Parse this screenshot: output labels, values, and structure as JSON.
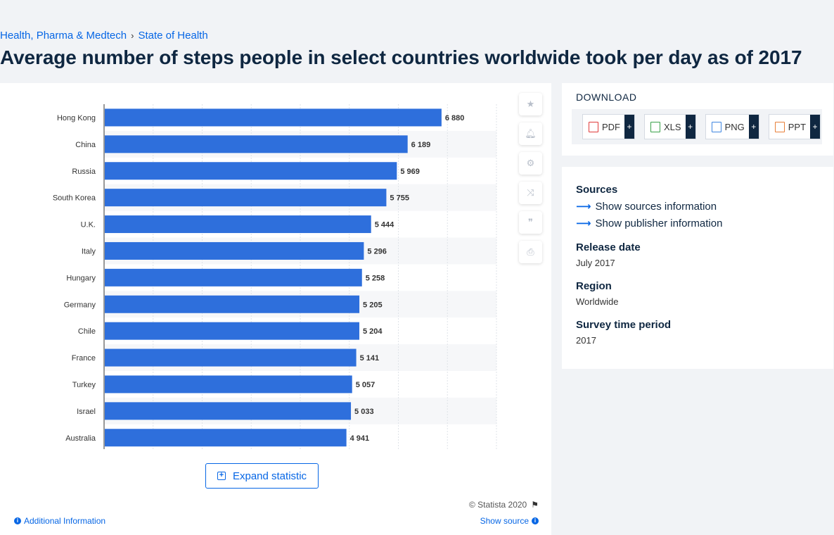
{
  "breadcrumb": {
    "items": [
      "Health, Pharma & Medtech",
      "State of Health"
    ],
    "separator": "›"
  },
  "page": {
    "title": "Average number of steps people in select countries worldwide took per day as of 2017"
  },
  "chart_data": {
    "type": "bar",
    "orientation": "horizontal",
    "title": "Average number of steps people in select countries worldwide took per day as of 2017",
    "categories": [
      "Hong Kong",
      "China",
      "Russia",
      "South Korea",
      "U.K.",
      "Italy",
      "Hungary",
      "Germany",
      "Chile",
      "France",
      "Turkey",
      "Israel",
      "Australia"
    ],
    "values": [
      6880,
      6189,
      5969,
      5755,
      5444,
      5296,
      5258,
      5205,
      5204,
      5141,
      5057,
      5033,
      4941
    ],
    "value_labels": [
      "6 880",
      "6 189",
      "5 969",
      "5 755",
      "5 444",
      "5 296",
      "5 258",
      "5 205",
      "5 204",
      "5 141",
      "5 057",
      "5 033",
      "4 941"
    ],
    "xlim": [
      0,
      8000
    ],
    "bar_color": "#2e6fdc",
    "grid": true,
    "xlabel": "",
    "ylabel": ""
  },
  "toolbar": {
    "items": [
      {
        "name": "favorite",
        "glyph": "★"
      },
      {
        "name": "notification",
        "glyph": "🔔︎"
      },
      {
        "name": "settings",
        "glyph": "⚙"
      },
      {
        "name": "share",
        "glyph": "⤨"
      },
      {
        "name": "cite",
        "glyph": "❞"
      },
      {
        "name": "print",
        "glyph": "⎙"
      }
    ]
  },
  "chart_footer": {
    "expand_label": "Expand statistic",
    "copyright": "© Statista 2020",
    "additional_info": "Additional Information",
    "show_source": "Show source"
  },
  "download": {
    "title": "DOWNLOAD",
    "buttons": [
      {
        "label": "PDF",
        "icon_color": "#e03b3b",
        "plus": "+"
      },
      {
        "label": "XLS",
        "icon_color": "#3aa14a",
        "plus": "+"
      },
      {
        "label": "PNG",
        "icon_color": "#3f86e0",
        "plus": "+"
      },
      {
        "label": "PPT",
        "icon_color": "#e8803a",
        "plus": "+"
      }
    ]
  },
  "info": {
    "sources_heading": "Sources",
    "show_sources": "Show sources information",
    "show_publisher": "Show publisher information",
    "release_heading": "Release date",
    "release_value": "July 2017",
    "region_heading": "Region",
    "region_value": "Worldwide",
    "survey_heading": "Survey time period",
    "survey_value": "2017"
  }
}
